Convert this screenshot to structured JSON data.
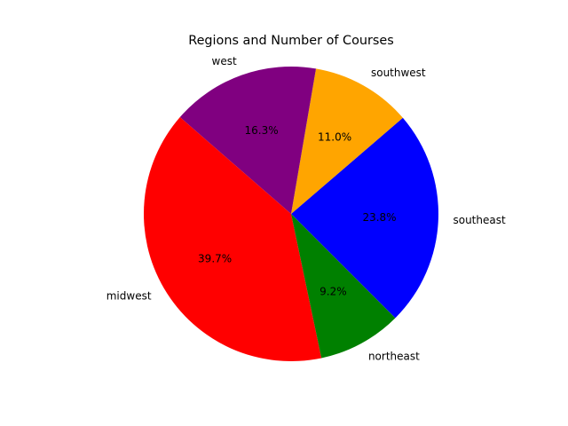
{
  "chart_data": {
    "type": "pie",
    "title": "Regions and Number of Courses",
    "slices": [
      {
        "label": "southeast",
        "value": 23.8,
        "pct_label": "23.8%",
        "color": "#0000ff"
      },
      {
        "label": "southwest",
        "value": 11.0,
        "pct_label": "11.0%",
        "color": "#ffa500"
      },
      {
        "label": "west",
        "value": 16.3,
        "pct_label": "16.3%",
        "color": "#800080"
      },
      {
        "label": "midwest",
        "value": 39.7,
        "pct_label": "39.7%",
        "color": "#ff0000"
      },
      {
        "label": "northeast",
        "value": 9.2,
        "pct_label": "9.2%",
        "color": "#008000"
      }
    ]
  }
}
